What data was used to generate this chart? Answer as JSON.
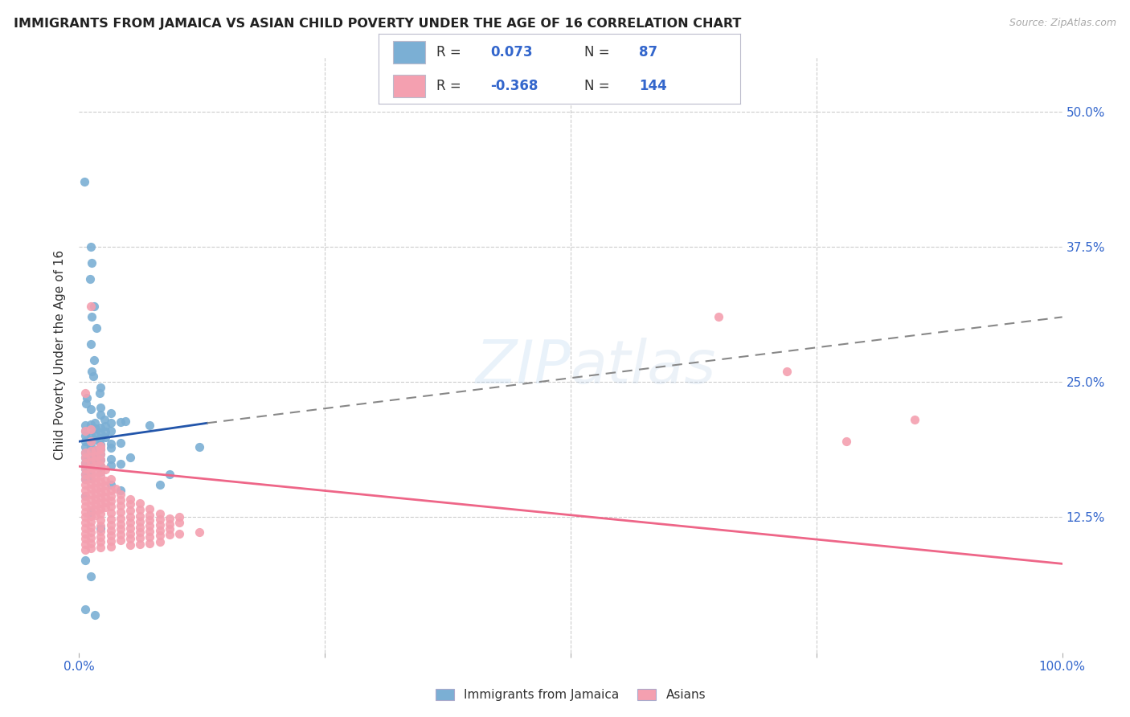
{
  "title": "IMMIGRANTS FROM JAMAICA VS ASIAN CHILD POVERTY UNDER THE AGE OF 16 CORRELATION CHART",
  "source": "Source: ZipAtlas.com",
  "ylabel": "Child Poverty Under the Age of 16",
  "ytick_labels": [
    "12.5%",
    "25.0%",
    "37.5%",
    "50.0%"
  ],
  "ytick_values": [
    0.125,
    0.25,
    0.375,
    0.5
  ],
  "legend_label1": "Immigrants from Jamaica",
  "legend_label2": "Asians",
  "r1": 0.073,
  "n1": 87,
  "r2": -0.368,
  "n2": 144,
  "color_blue": "#7BAFD4",
  "color_pink": "#F4A0B0",
  "color_blue_dark": "#2255AA",
  "color_pink_dark": "#EE6688",
  "color_label_blue": "#3366CC",
  "watermark": "ZIPatlas",
  "blue_scatter": [
    [
      0.005,
      0.435
    ],
    [
      0.012,
      0.375
    ],
    [
      0.013,
      0.36
    ],
    [
      0.011,
      0.345
    ],
    [
      0.015,
      0.32
    ],
    [
      0.013,
      0.31
    ],
    [
      0.018,
      0.3
    ],
    [
      0.012,
      0.285
    ],
    [
      0.015,
      0.27
    ],
    [
      0.013,
      0.26
    ],
    [
      0.014,
      0.255
    ],
    [
      0.022,
      0.245
    ],
    [
      0.021,
      0.24
    ],
    [
      0.008,
      0.235
    ],
    [
      0.007,
      0.23
    ],
    [
      0.012,
      0.225
    ],
    [
      0.022,
      0.226
    ],
    [
      0.022,
      0.22
    ],
    [
      0.032,
      0.221
    ],
    [
      0.026,
      0.215
    ],
    [
      0.006,
      0.21
    ],
    [
      0.012,
      0.211
    ],
    [
      0.016,
      0.212
    ],
    [
      0.032,
      0.212
    ],
    [
      0.042,
      0.213
    ],
    [
      0.047,
      0.214
    ],
    [
      0.006,
      0.205
    ],
    [
      0.012,
      0.206
    ],
    [
      0.017,
      0.207
    ],
    [
      0.022,
      0.208
    ],
    [
      0.027,
      0.209
    ],
    [
      0.006,
      0.2
    ],
    [
      0.012,
      0.201
    ],
    [
      0.017,
      0.202
    ],
    [
      0.022,
      0.203
    ],
    [
      0.027,
      0.204
    ],
    [
      0.032,
      0.205
    ],
    [
      0.006,
      0.195
    ],
    [
      0.012,
      0.196
    ],
    [
      0.017,
      0.197
    ],
    [
      0.022,
      0.198
    ],
    [
      0.027,
      0.199
    ],
    [
      0.006,
      0.19
    ],
    [
      0.012,
      0.191
    ],
    [
      0.022,
      0.192
    ],
    [
      0.032,
      0.193
    ],
    [
      0.042,
      0.194
    ],
    [
      0.006,
      0.185
    ],
    [
      0.012,
      0.186
    ],
    [
      0.017,
      0.187
    ],
    [
      0.022,
      0.188
    ],
    [
      0.032,
      0.189
    ],
    [
      0.006,
      0.18
    ],
    [
      0.012,
      0.181
    ],
    [
      0.017,
      0.182
    ],
    [
      0.022,
      0.183
    ],
    [
      0.006,
      0.175
    ],
    [
      0.012,
      0.176
    ],
    [
      0.017,
      0.177
    ],
    [
      0.022,
      0.178
    ],
    [
      0.032,
      0.179
    ],
    [
      0.052,
      0.18
    ],
    [
      0.006,
      0.17
    ],
    [
      0.012,
      0.171
    ],
    [
      0.022,
      0.172
    ],
    [
      0.032,
      0.173
    ],
    [
      0.042,
      0.174
    ],
    [
      0.006,
      0.165
    ],
    [
      0.012,
      0.166
    ],
    [
      0.022,
      0.167
    ],
    [
      0.006,
      0.16
    ],
    [
      0.012,
      0.161
    ],
    [
      0.032,
      0.155
    ],
    [
      0.042,
      0.15
    ],
    [
      0.006,
      0.145
    ],
    [
      0.012,
      0.13
    ],
    [
      0.022,
      0.115
    ],
    [
      0.006,
      0.085
    ],
    [
      0.012,
      0.07
    ],
    [
      0.006,
      0.04
    ],
    [
      0.016,
      0.035
    ],
    [
      0.072,
      0.21
    ],
    [
      0.082,
      0.155
    ],
    [
      0.092,
      0.165
    ],
    [
      0.122,
      0.19
    ]
  ],
  "pink_scatter": [
    [
      0.006,
      0.24
    ],
    [
      0.012,
      0.32
    ],
    [
      0.006,
      0.205
    ],
    [
      0.012,
      0.206
    ],
    [
      0.012,
      0.195
    ],
    [
      0.022,
      0.191
    ],
    [
      0.006,
      0.185
    ],
    [
      0.012,
      0.186
    ],
    [
      0.017,
      0.187
    ],
    [
      0.022,
      0.188
    ],
    [
      0.006,
      0.18
    ],
    [
      0.012,
      0.181
    ],
    [
      0.017,
      0.182
    ],
    [
      0.022,
      0.183
    ],
    [
      0.006,
      0.175
    ],
    [
      0.012,
      0.176
    ],
    [
      0.017,
      0.177
    ],
    [
      0.022,
      0.178
    ],
    [
      0.006,
      0.17
    ],
    [
      0.012,
      0.171
    ],
    [
      0.017,
      0.172
    ],
    [
      0.022,
      0.173
    ],
    [
      0.006,
      0.165
    ],
    [
      0.012,
      0.166
    ],
    [
      0.017,
      0.167
    ],
    [
      0.022,
      0.168
    ],
    [
      0.027,
      0.169
    ],
    [
      0.006,
      0.16
    ],
    [
      0.012,
      0.161
    ],
    [
      0.017,
      0.162
    ],
    [
      0.022,
      0.163
    ],
    [
      0.006,
      0.155
    ],
    [
      0.012,
      0.156
    ],
    [
      0.017,
      0.157
    ],
    [
      0.022,
      0.158
    ],
    [
      0.027,
      0.159
    ],
    [
      0.032,
      0.16
    ],
    [
      0.006,
      0.15
    ],
    [
      0.012,
      0.151
    ],
    [
      0.017,
      0.152
    ],
    [
      0.022,
      0.153
    ],
    [
      0.027,
      0.154
    ],
    [
      0.006,
      0.145
    ],
    [
      0.012,
      0.146
    ],
    [
      0.017,
      0.147
    ],
    [
      0.022,
      0.148
    ],
    [
      0.027,
      0.149
    ],
    [
      0.032,
      0.15
    ],
    [
      0.037,
      0.151
    ],
    [
      0.006,
      0.14
    ],
    [
      0.012,
      0.141
    ],
    [
      0.017,
      0.142
    ],
    [
      0.022,
      0.143
    ],
    [
      0.027,
      0.144
    ],
    [
      0.032,
      0.145
    ],
    [
      0.042,
      0.146
    ],
    [
      0.006,
      0.135
    ],
    [
      0.012,
      0.136
    ],
    [
      0.017,
      0.137
    ],
    [
      0.022,
      0.138
    ],
    [
      0.027,
      0.139
    ],
    [
      0.032,
      0.14
    ],
    [
      0.042,
      0.141
    ],
    [
      0.052,
      0.142
    ],
    [
      0.006,
      0.13
    ],
    [
      0.012,
      0.131
    ],
    [
      0.017,
      0.132
    ],
    [
      0.022,
      0.133
    ],
    [
      0.027,
      0.134
    ],
    [
      0.032,
      0.135
    ],
    [
      0.042,
      0.136
    ],
    [
      0.052,
      0.137
    ],
    [
      0.062,
      0.138
    ],
    [
      0.006,
      0.125
    ],
    [
      0.012,
      0.126
    ],
    [
      0.017,
      0.127
    ],
    [
      0.022,
      0.128
    ],
    [
      0.032,
      0.129
    ],
    [
      0.042,
      0.13
    ],
    [
      0.052,
      0.131
    ],
    [
      0.062,
      0.132
    ],
    [
      0.072,
      0.133
    ],
    [
      0.006,
      0.12
    ],
    [
      0.012,
      0.121
    ],
    [
      0.022,
      0.122
    ],
    [
      0.032,
      0.123
    ],
    [
      0.042,
      0.124
    ],
    [
      0.052,
      0.125
    ],
    [
      0.062,
      0.126
    ],
    [
      0.072,
      0.127
    ],
    [
      0.082,
      0.128
    ],
    [
      0.006,
      0.115
    ],
    [
      0.012,
      0.116
    ],
    [
      0.022,
      0.117
    ],
    [
      0.032,
      0.118
    ],
    [
      0.042,
      0.119
    ],
    [
      0.052,
      0.12
    ],
    [
      0.062,
      0.121
    ],
    [
      0.072,
      0.122
    ],
    [
      0.082,
      0.123
    ],
    [
      0.092,
      0.124
    ],
    [
      0.102,
      0.125
    ],
    [
      0.006,
      0.11
    ],
    [
      0.012,
      0.111
    ],
    [
      0.022,
      0.112
    ],
    [
      0.032,
      0.113
    ],
    [
      0.042,
      0.114
    ],
    [
      0.052,
      0.115
    ],
    [
      0.062,
      0.116
    ],
    [
      0.072,
      0.117
    ],
    [
      0.082,
      0.118
    ],
    [
      0.092,
      0.119
    ],
    [
      0.102,
      0.12
    ],
    [
      0.006,
      0.105
    ],
    [
      0.012,
      0.106
    ],
    [
      0.022,
      0.107
    ],
    [
      0.032,
      0.108
    ],
    [
      0.042,
      0.109
    ],
    [
      0.052,
      0.11
    ],
    [
      0.062,
      0.111
    ],
    [
      0.072,
      0.112
    ],
    [
      0.082,
      0.113
    ],
    [
      0.092,
      0.114
    ],
    [
      0.006,
      0.1
    ],
    [
      0.012,
      0.101
    ],
    [
      0.022,
      0.102
    ],
    [
      0.032,
      0.103
    ],
    [
      0.042,
      0.104
    ],
    [
      0.052,
      0.105
    ],
    [
      0.062,
      0.106
    ],
    [
      0.072,
      0.107
    ],
    [
      0.082,
      0.108
    ],
    [
      0.092,
      0.109
    ],
    [
      0.102,
      0.11
    ],
    [
      0.122,
      0.111
    ],
    [
      0.006,
      0.095
    ],
    [
      0.012,
      0.096
    ],
    [
      0.022,
      0.097
    ],
    [
      0.032,
      0.098
    ],
    [
      0.052,
      0.099
    ],
    [
      0.062,
      0.1
    ],
    [
      0.072,
      0.101
    ],
    [
      0.082,
      0.102
    ],
    [
      0.65,
      0.31
    ],
    [
      0.72,
      0.26
    ],
    [
      0.78,
      0.195
    ],
    [
      0.85,
      0.215
    ]
  ],
  "blue_line": {
    "x0": 0.0,
    "y0": 0.195,
    "x1": 0.13,
    "y1": 0.212,
    "x2": 1.0,
    "y2": 0.31
  },
  "pink_line": {
    "x0": 0.0,
    "y0": 0.172,
    "x1": 1.0,
    "y1": 0.082
  },
  "xlim": [
    0.0,
    1.0
  ],
  "ylim": [
    0.0,
    0.55
  ],
  "xtick_positions": [
    0.0,
    0.25,
    0.5,
    0.75,
    1.0
  ],
  "xtick_labels_show": [
    "0.0%",
    "",
    "",
    "",
    "100.0%"
  ]
}
